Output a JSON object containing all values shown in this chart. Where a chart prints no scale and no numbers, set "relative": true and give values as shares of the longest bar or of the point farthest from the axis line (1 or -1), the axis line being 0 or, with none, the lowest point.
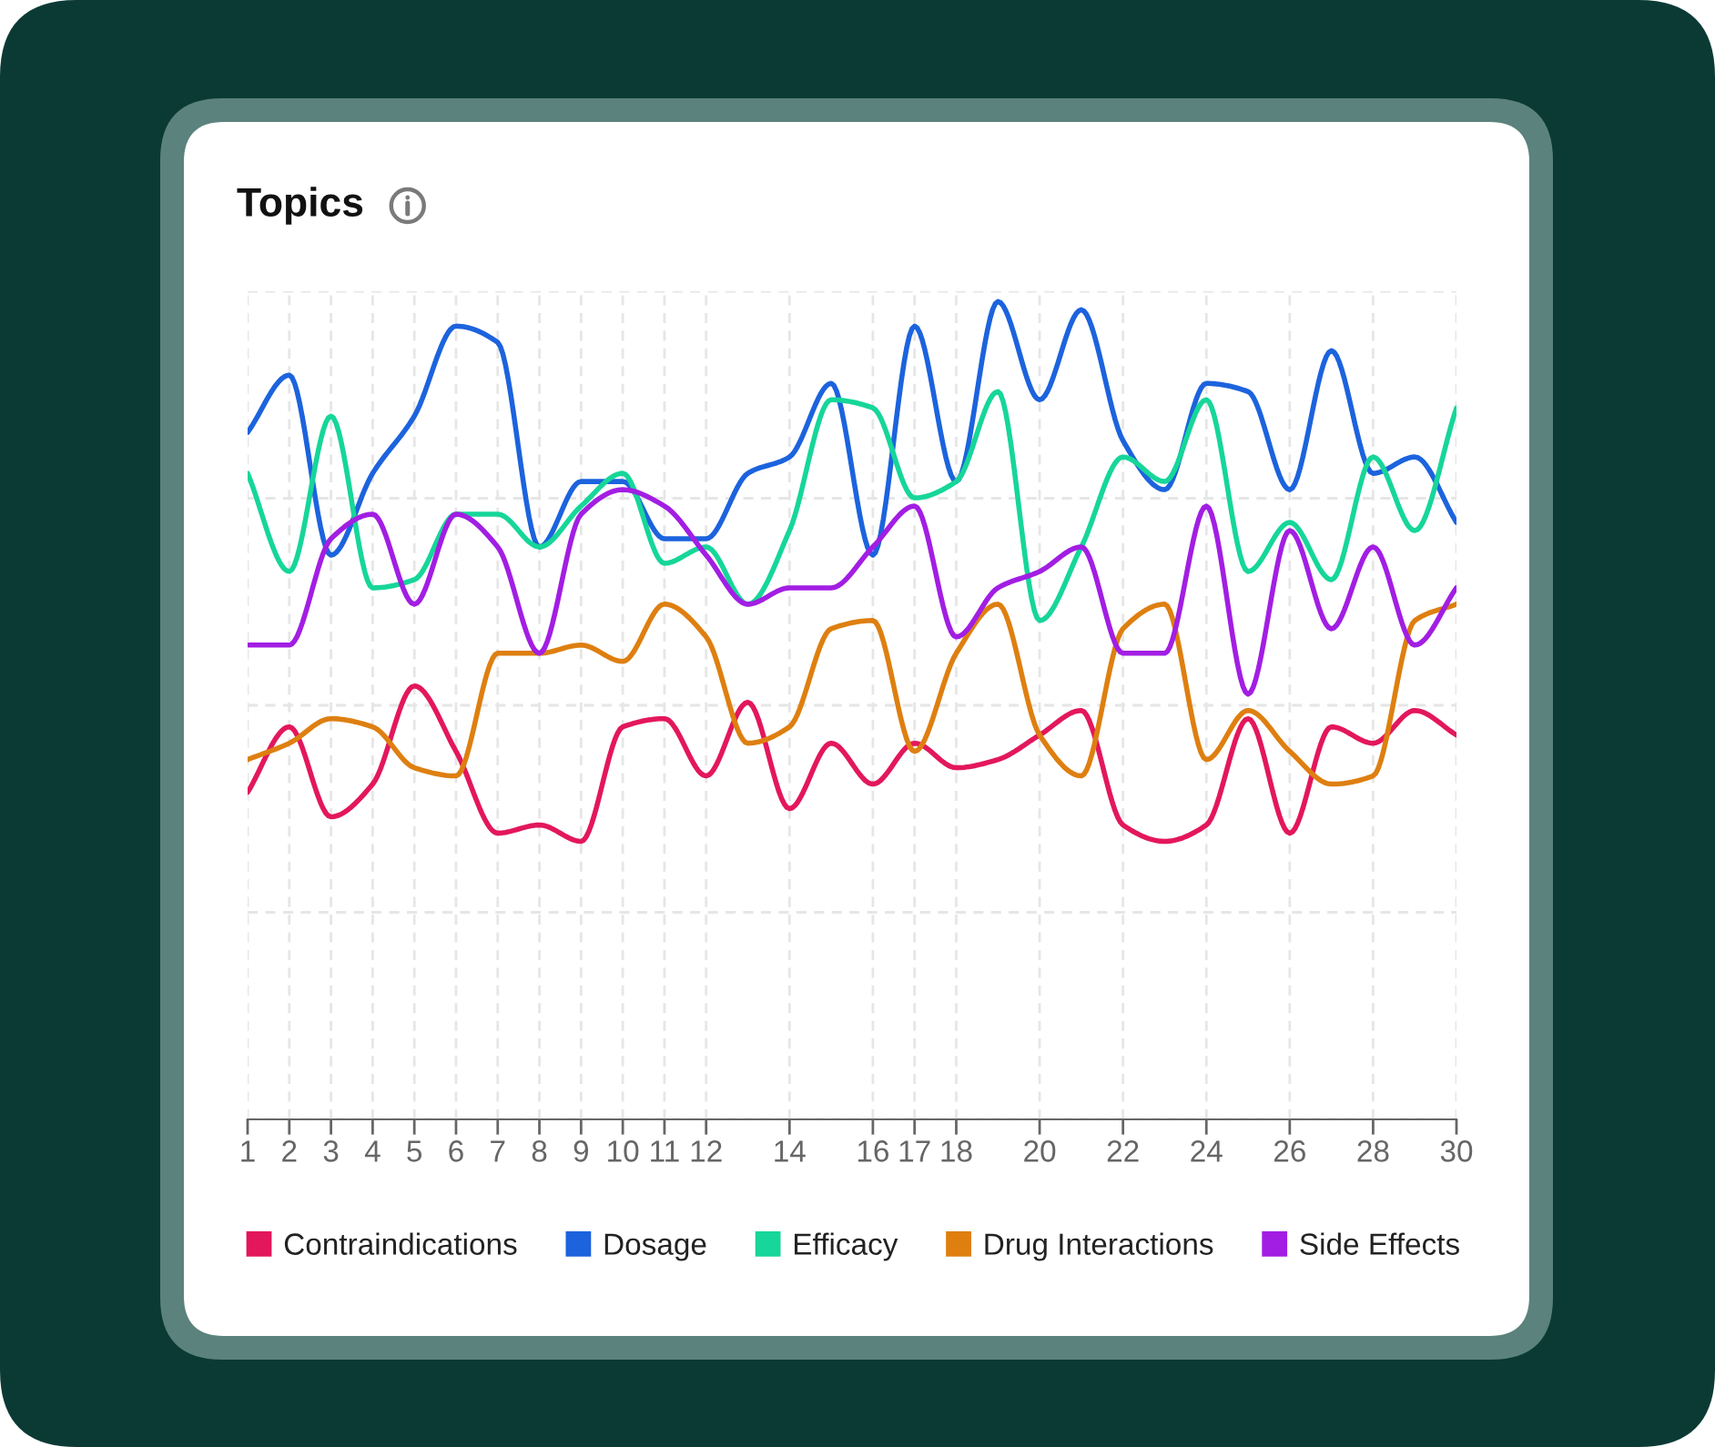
{
  "chart_data": {
    "type": "line",
    "title": "Topics",
    "relative": true,
    "grid": true,
    "legend": "bottom",
    "x": [
      1,
      2,
      3,
      4,
      5,
      6,
      7,
      8,
      9,
      10,
      11,
      12,
      13,
      14,
      15,
      16,
      17,
      18,
      19,
      20,
      21,
      22,
      23,
      24,
      25,
      26,
      27,
      28,
      29,
      30
    ],
    "xlim": [
      1,
      30
    ],
    "xticks": [
      1,
      2,
      3,
      4,
      5,
      6,
      7,
      8,
      9,
      10,
      11,
      12,
      14,
      16,
      17,
      18,
      20,
      22,
      24,
      26,
      28,
      30
    ],
    "series": [
      {
        "name": "Contraindications",
        "color": "#e3175c",
        "values": [
          0.4,
          0.48,
          0.37,
          0.41,
          0.53,
          0.45,
          0.35,
          0.36,
          0.34,
          0.48,
          0.49,
          0.42,
          0.51,
          0.38,
          0.46,
          0.41,
          0.46,
          0.43,
          0.44,
          0.47,
          0.5,
          0.36,
          0.34,
          0.36,
          0.49,
          0.35,
          0.48,
          0.46,
          0.5,
          0.47
        ]
      },
      {
        "name": "Dosage",
        "color": "#1c63dd",
        "values": [
          0.84,
          0.91,
          0.69,
          0.79,
          0.86,
          0.97,
          0.95,
          0.7,
          0.78,
          0.78,
          0.71,
          0.71,
          0.79,
          0.81,
          0.9,
          0.69,
          0.97,
          0.78,
          1.0,
          0.88,
          0.99,
          0.83,
          0.77,
          0.9,
          0.89,
          0.77,
          0.94,
          0.79,
          0.81,
          0.73
        ]
      },
      {
        "name": "Efficacy",
        "color": "#16d699",
        "values": [
          0.79,
          0.67,
          0.86,
          0.65,
          0.66,
          0.74,
          0.74,
          0.7,
          0.75,
          0.79,
          0.68,
          0.7,
          0.63,
          0.72,
          0.88,
          0.87,
          0.76,
          0.78,
          0.89,
          0.61,
          0.7,
          0.81,
          0.78,
          0.88,
          0.67,
          0.73,
          0.66,
          0.81,
          0.72,
          0.87
        ]
      },
      {
        "name": "Drug Interactions",
        "color": "#de7f10",
        "values": [
          0.44,
          0.46,
          0.49,
          0.48,
          0.43,
          0.42,
          0.57,
          0.57,
          0.58,
          0.56,
          0.63,
          0.59,
          0.46,
          0.48,
          0.6,
          0.61,
          0.45,
          0.57,
          0.63,
          0.47,
          0.42,
          0.6,
          0.63,
          0.44,
          0.5,
          0.45,
          0.41,
          0.42,
          0.61,
          0.63
        ]
      },
      {
        "name": "Side Effects",
        "color": "#a21ee3",
        "values": [
          0.58,
          0.58,
          0.71,
          0.74,
          0.63,
          0.74,
          0.7,
          0.57,
          0.74,
          0.77,
          0.75,
          0.69,
          0.63,
          0.65,
          0.65,
          0.7,
          0.75,
          0.59,
          0.65,
          0.67,
          0.7,
          0.57,
          0.57,
          0.75,
          0.52,
          0.72,
          0.6,
          0.7,
          0.58,
          0.65
        ]
      }
    ]
  }
}
